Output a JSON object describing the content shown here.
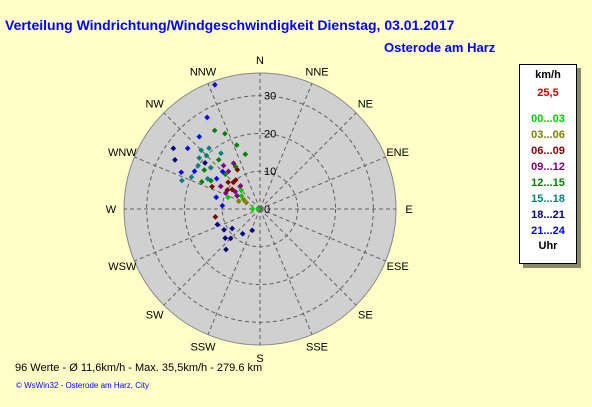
{
  "title": "Verteilung Windrichtung/Windgeschwindigkeit  Dienstag, 03.01.2017",
  "station": "Osterode am Harz",
  "chart_data": {
    "type": "scatter",
    "polar": true,
    "radial_unit": "km/h",
    "rlim": [
      0,
      36
    ],
    "radial_ticks": [
      0,
      10,
      20,
      30
    ],
    "directions": [
      "N",
      "NNE",
      "NE",
      "ENE",
      "E",
      "ESE",
      "SE",
      "SSE",
      "S",
      "SSW",
      "SW",
      "WSW",
      "W",
      "WNW",
      "NW",
      "NNW"
    ],
    "grid": true,
    "legend_position": "right",
    "series": [
      {
        "name": "00...03",
        "color": "#00cc00",
        "points": [
          [
            271,
            0.5
          ],
          [
            270,
            2
          ],
          [
            290,
            9
          ],
          [
            300,
            7
          ],
          [
            305,
            6
          ],
          [
            315,
            7
          ]
        ]
      },
      {
        "name": "03...06",
        "color": "#808000",
        "points": [
          [
            290,
            6
          ],
          [
            295,
            4
          ],
          [
            300,
            5
          ]
        ]
      },
      {
        "name": "06...09",
        "color": "#800000",
        "points": [
          [
            300,
            10
          ],
          [
            305,
            9
          ],
          [
            315,
            10
          ],
          [
            320,
            10
          ],
          [
            310,
            11
          ],
          [
            330,
            12
          ],
          [
            260,
            12
          ],
          [
            300,
            12
          ],
          [
            295,
            14
          ]
        ]
      },
      {
        "name": "09...12",
        "color": "#800080",
        "points": [
          [
            320,
            8
          ],
          [
            300,
            7
          ],
          [
            305,
            8
          ],
          [
            320,
            13
          ],
          [
            330,
            14
          ],
          [
            320,
            15
          ],
          [
            310,
            17
          ],
          [
            300,
            12
          ],
          [
            295,
            10
          ]
        ]
      },
      {
        "name": "12...15",
        "color": "#008000",
        "points": [
          [
            340,
            18
          ],
          [
            345,
            15
          ],
          [
            300,
            15
          ],
          [
            305,
            18
          ],
          [
            315,
            13
          ],
          [
            295,
            17
          ],
          [
            335,
            22
          ],
          [
            330,
            24
          ],
          [
            320,
            17
          ],
          [
            330,
            13
          ]
        ]
      },
      {
        "name": "15...18",
        "color": "#008080",
        "points": [
          [
            300,
            16
          ],
          [
            310,
            17
          ],
          [
            295,
            20
          ],
          [
            315,
            20
          ],
          [
            305,
            20
          ],
          [
            320,
            21
          ],
          [
            315,
            22
          ],
          [
            290,
            22
          ],
          [
            310,
            21
          ],
          [
            325,
            18
          ]
        ]
      },
      {
        "name": "18...21",
        "color": "#000080",
        "points": [
          [
            235,
            9
          ],
          [
            200,
            6
          ],
          [
            240,
            11
          ],
          [
            230,
            12
          ],
          [
            225,
            11
          ],
          [
            215,
            8
          ],
          [
            250,
            12
          ],
          [
            220,
            14
          ],
          [
            305,
            28
          ],
          [
            300,
            26
          ],
          [
            310,
            19
          ]
        ]
      },
      {
        "name": "21...24",
        "color": "#0000ff",
        "points": [
          [
            295,
            23
          ],
          [
            310,
            25
          ],
          [
            320,
            25
          ],
          [
            330,
            28
          ],
          [
            300,
            20
          ],
          [
            340,
            35
          ],
          [
            315,
            14
          ],
          [
            305,
            14
          ],
          [
            285,
            12
          ],
          [
            275,
            10
          ]
        ]
      }
    ]
  },
  "legend": {
    "unit": "km/h",
    "max": "25,5",
    "items": [
      {
        "label": "00...03",
        "color": "#00cc00"
      },
      {
        "label": "03...06",
        "color": "#808000"
      },
      {
        "label": "06...09",
        "color": "#800000"
      },
      {
        "label": "09...12",
        "color": "#800080"
      },
      {
        "label": "12...15",
        "color": "#008000"
      },
      {
        "label": "15...18",
        "color": "#008080"
      },
      {
        "label": "18...21",
        "color": "#000080"
      },
      {
        "label": "21...24",
        "color": "#0000ff"
      }
    ],
    "footer": "Uhr",
    "max_color": "#cc0000"
  },
  "stats": "96 Werte   -   Ø 11,6km/h  -  Max. 35,5km/h   -   279.6 km",
  "credit": "© WsWin32  -  Osterode am Harz, City",
  "colors": {
    "disc": "#d0d0d0",
    "background": "#ffffc8",
    "title": "#0000ff"
  }
}
